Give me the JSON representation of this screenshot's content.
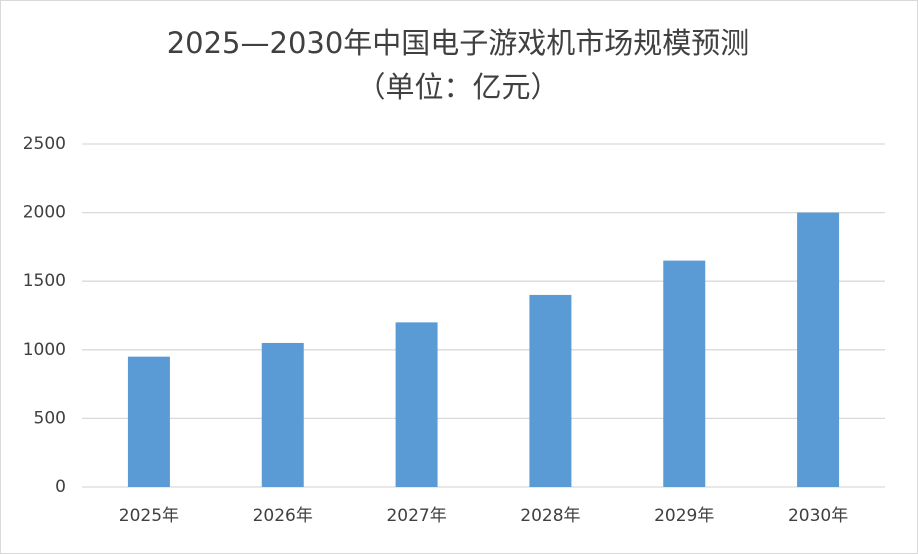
{
  "chart_data": {
    "type": "bar",
    "title": "2025—2030年中国电子游戏机市场规模预测",
    "subtitle": "（单位：亿元）",
    "categories": [
      "2025年",
      "2026年",
      "2027年",
      "2028年",
      "2029年",
      "2030年"
    ],
    "values": [
      950,
      1050,
      1200,
      1400,
      1650,
      2000
    ],
    "color": "#5b9bd5",
    "ylim": [
      0,
      2500
    ],
    "yticks": [
      0,
      500,
      1000,
      1500,
      2000,
      2500
    ],
    "grid": true
  }
}
